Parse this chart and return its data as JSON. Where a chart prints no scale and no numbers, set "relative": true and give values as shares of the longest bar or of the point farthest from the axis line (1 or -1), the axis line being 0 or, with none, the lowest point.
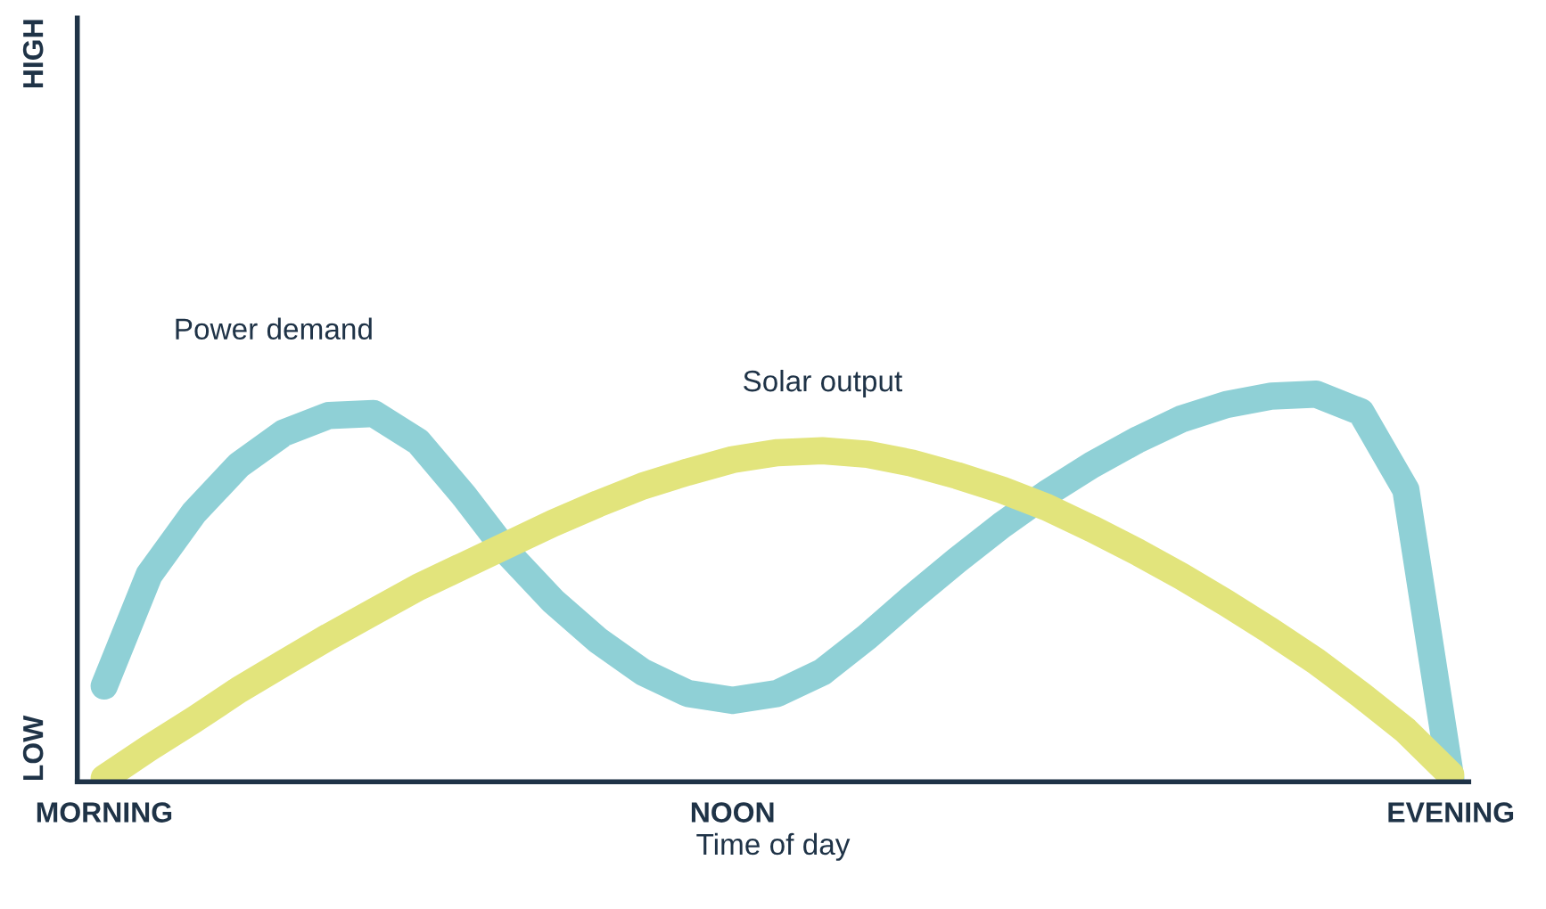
{
  "chart_data": {
    "type": "line",
    "relative": true,
    "xlabel": "Time of day",
    "categories": [
      "MORNING",
      null,
      null,
      null,
      null,
      null,
      null,
      null,
      null,
      null,
      null,
      null,
      null,
      null,
      "NOON",
      null,
      null,
      null,
      null,
      null,
      null,
      null,
      null,
      null,
      null,
      null,
      null,
      null,
      null,
      null,
      "EVENING"
    ],
    "annotations": [
      "LOW",
      "HIGH"
    ],
    "grid": false,
    "legend": false,
    "marker": "none",
    "line_style": "solid",
    "series": [
      {
        "name": "Power demand",
        "color": "#8fd0d6",
        "values": [
          0.247,
          0.534,
          0.694,
          0.817,
          0.9,
          0.945,
          0.95,
          0.877,
          0.74,
          0.589,
          0.466,
          0.365,
          0.283,
          0.228,
          0.21,
          0.228,
          0.283,
          0.374,
          0.475,
          0.571,
          0.662,
          0.744,
          0.817,
          0.881,
          0.936,
          0.973,
          0.995,
          1.0,
          0.954,
          0.753,
          0.009
        ]
      },
      {
        "name": "Solar output",
        "color": "#e2e47c",
        "values": [
          0.009,
          0.087,
          0.16,
          0.237,
          0.306,
          0.374,
          0.438,
          0.502,
          0.557,
          0.612,
          0.667,
          0.717,
          0.763,
          0.799,
          0.831,
          0.849,
          0.854,
          0.845,
          0.822,
          0.79,
          0.753,
          0.708,
          0.653,
          0.594,
          0.53,
          0.461,
          0.388,
          0.311,
          0.224,
          0.132,
          0.018
        ]
      }
    ]
  }
}
